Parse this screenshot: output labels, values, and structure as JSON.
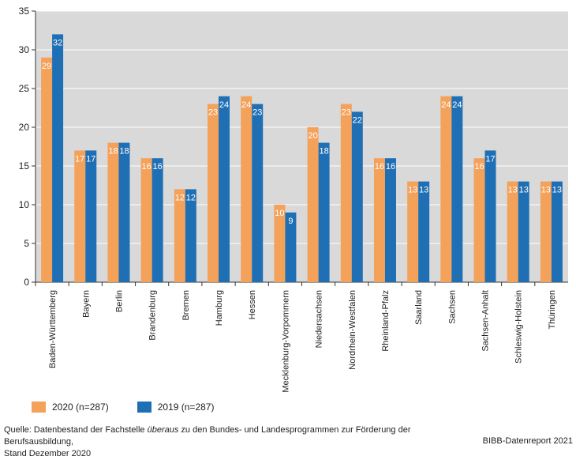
{
  "chart_data": {
    "type": "bar",
    "title": "",
    "xlabel": "",
    "ylabel": "",
    "ylim": [
      0,
      35
    ],
    "yticks": [
      0,
      5,
      10,
      15,
      20,
      25,
      30,
      35
    ],
    "grid": true,
    "categories": [
      "Baden-Württemberg",
      "Bayern",
      "Berlin",
      "Brandenburg",
      "Bremen",
      "Hamburg",
      "Hessen",
      "Mecklenburg-Vorpommern",
      "Niedersachsen",
      "Nordrhein-Westfalen",
      "Rheinland-Pfalz",
      "Saarland",
      "Sachsen",
      "Sachsen-Anhalt",
      "Schleswig-Holstein",
      "Thüringen"
    ],
    "series": [
      {
        "name": "2020 (n=287)",
        "color": "#f4a15a",
        "values": [
          29,
          17,
          18,
          16,
          12,
          23,
          24,
          10,
          20,
          23,
          16,
          13,
          24,
          16,
          13,
          13
        ]
      },
      {
        "name": "2019 (n=287)",
        "color": "#1f6fb4",
        "values": [
          32,
          17,
          18,
          16,
          12,
          24,
          23,
          9,
          18,
          22,
          16,
          13,
          24,
          17,
          13,
          13
        ]
      }
    ],
    "legend_position": "bottom-left"
  },
  "colors": {
    "plot_bg": "#d9d9d9",
    "grid": "#ffffff",
    "axis": "#333333"
  },
  "legend": [
    {
      "label": "2020 (n=287)",
      "color": "#f4a15a"
    },
    {
      "label": "2019 (n=287)",
      "color": "#1f6fb4"
    }
  ],
  "source": {
    "prefix": "Quelle: Datenbestand der Fachstelle ",
    "emphasis": "überaus",
    "suffix": " zu den Bundes- und Landesprogrammen zur Förderung der Berufsausbildung,",
    "line2": "Stand Dezember 2020"
  },
  "brand": "BIBB-Datenreport 2021"
}
